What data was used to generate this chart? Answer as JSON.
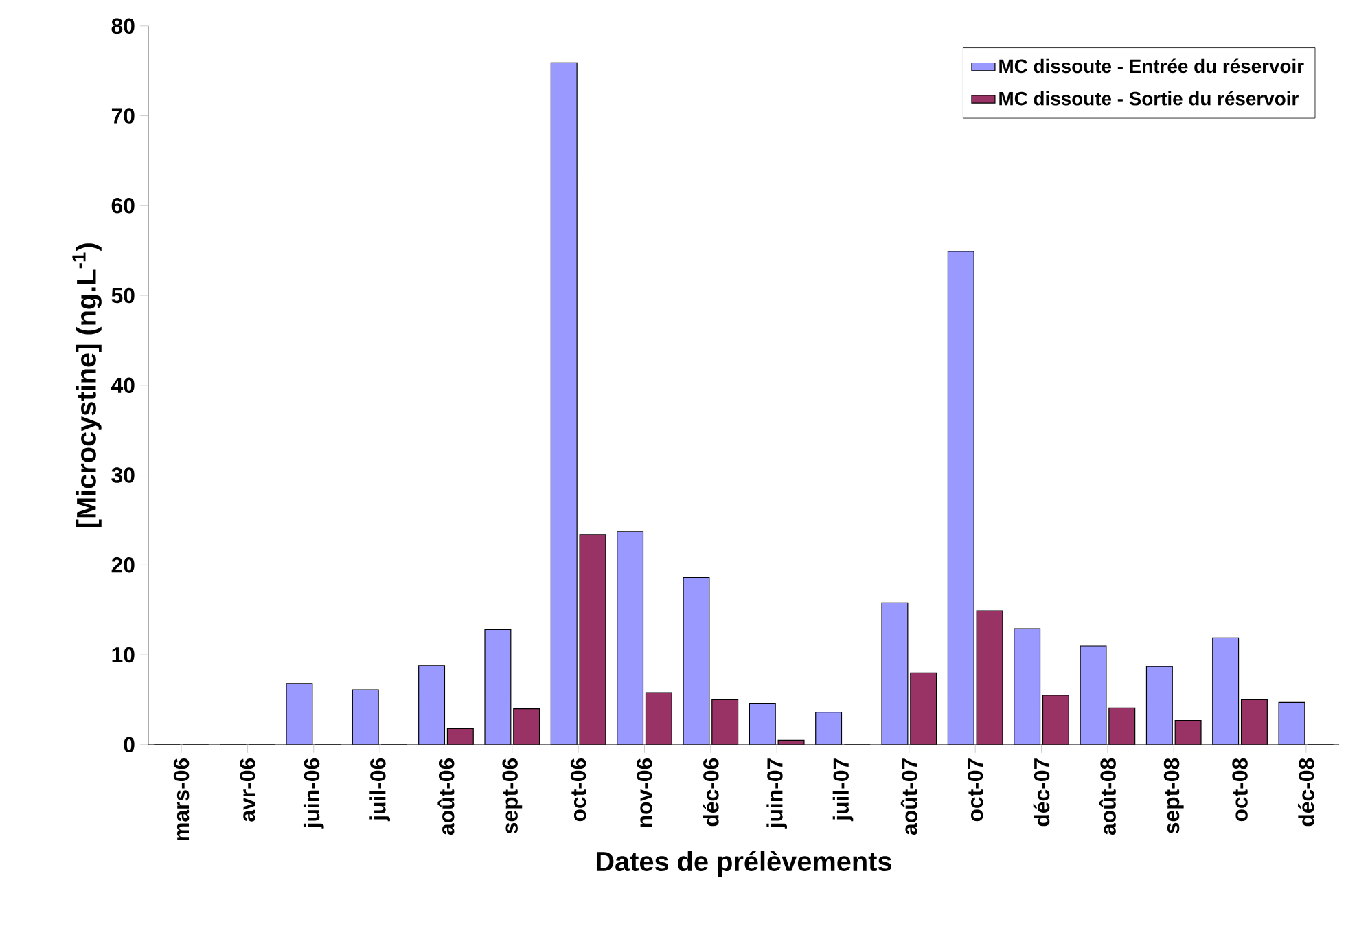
{
  "chart_data": {
    "type": "bar",
    "xlabel": "Dates de prélèvements",
    "ylabel": "[Microcystine] (ng.L$^{-1}$)",
    "categories": [
      "mars-06",
      "avr-06",
      "juin-06",
      "juil-06",
      "août-06",
      "sept-06",
      "oct-06",
      "nov-06",
      "déc-06",
      "juin-07",
      "juil-07",
      "août-07",
      "oct-07",
      "déc-07",
      "août-08",
      "sept-08",
      "oct-08",
      "déc-08"
    ],
    "series": [
      {
        "name": "MC dissoute - Entrée du réservoir",
        "color": "#9999ff",
        "values": [
          0,
          0,
          6.8,
          6.1,
          8.8,
          12.8,
          75.9,
          23.7,
          18.6,
          4.6,
          3.6,
          15.8,
          54.9,
          12.9,
          11,
          8.7,
          11.9,
          4.7
        ]
      },
      {
        "name": "MC dissoute - Sortie du réservoir",
        "color": "#993366",
        "values": [
          0,
          0,
          0,
          0,
          1.8,
          4,
          23.4,
          5.8,
          5,
          0.5,
          0,
          8,
          14.9,
          5.5,
          4.1,
          2.7,
          5,
          0
        ]
      }
    ],
    "ylim": [
      0,
      80
    ],
    "yticks": [
      0,
      10,
      20,
      30,
      40,
      50,
      60,
      70,
      80
    ],
    "grid": false,
    "legend": "top right"
  }
}
